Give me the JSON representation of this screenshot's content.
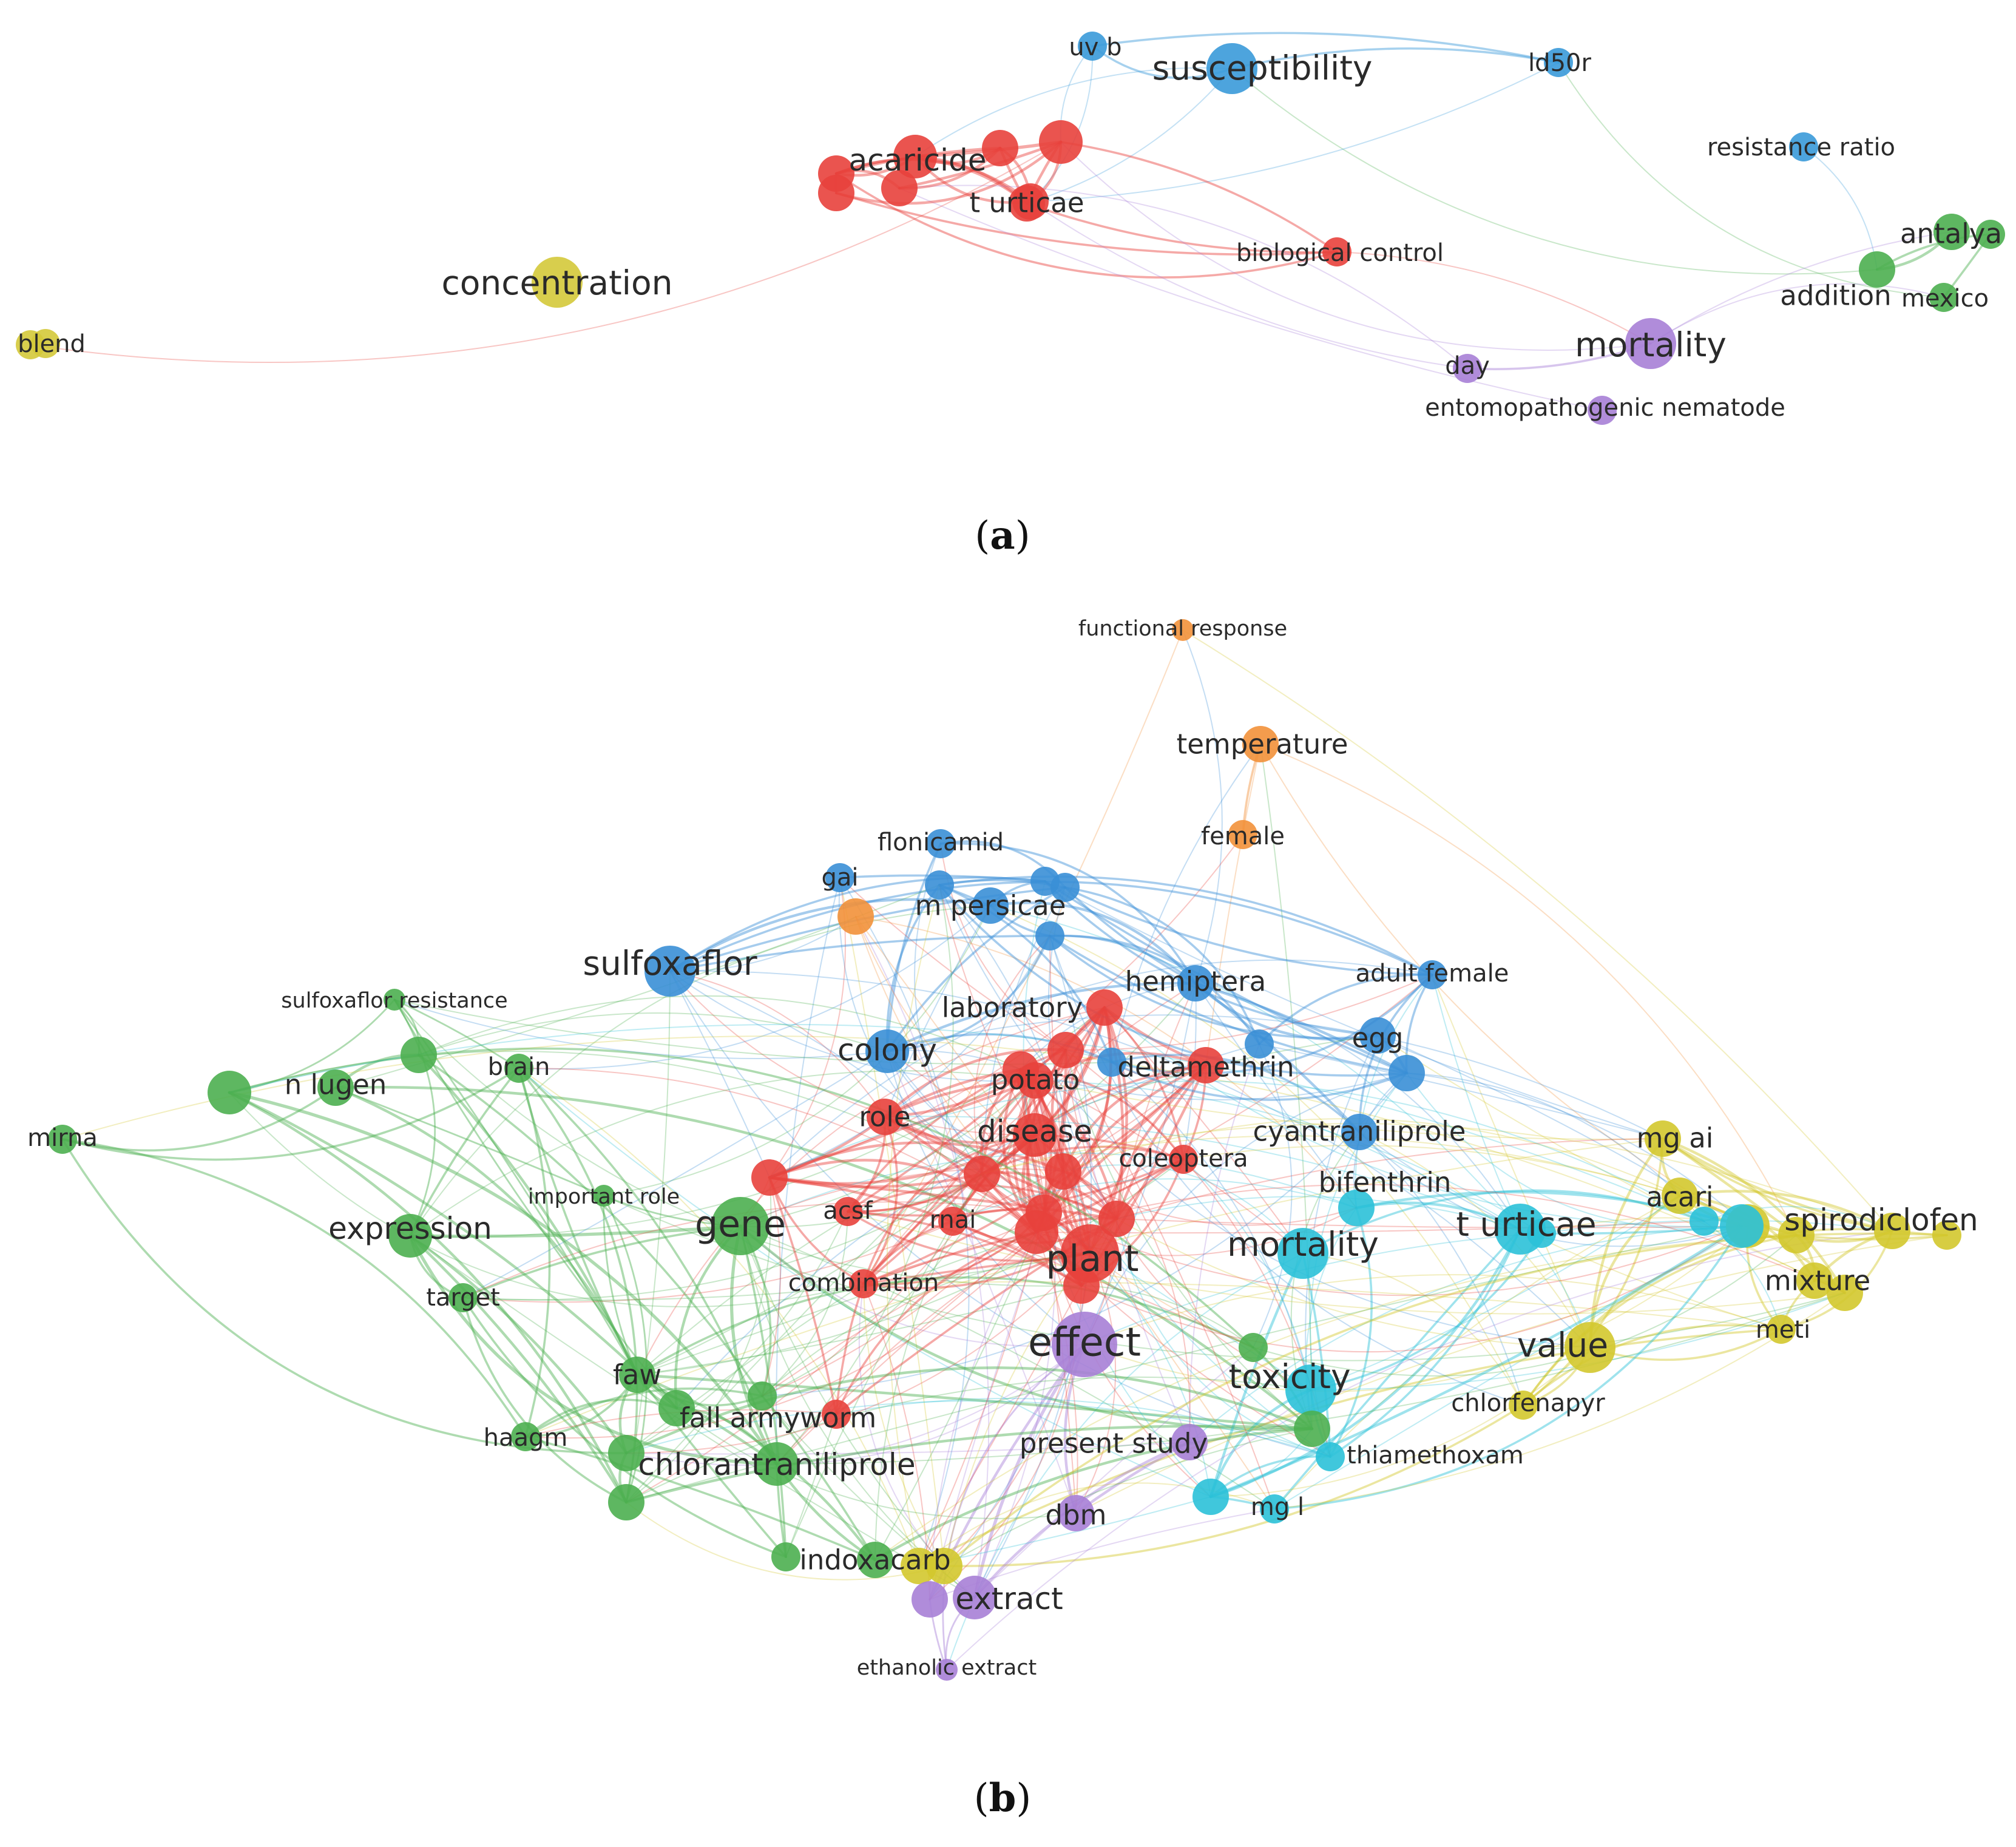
{
  "figure": {
    "panels": [
      {
        "id": "a",
        "caption_letter": "a",
        "network": {
          "clusters": {
            "red": "#e8413c",
            "yellow": "#d4c93a",
            "blue": "#3a9ad9",
            "green": "#4caf50",
            "purple": "#a77fd6"
          },
          "nodes": [
            {
              "id": "blend",
              "label": "blend",
              "cluster": "yellow",
              "weight": 2
            },
            {
              "id": "concentration",
              "label": "concentration",
              "cluster": "yellow",
              "weight": 5
            },
            {
              "id": "acaricide",
              "label": "acaricide",
              "cluster": "red",
              "weight": 4
            },
            {
              "id": "t-urticae",
              "label": "t urticae",
              "cluster": "red",
              "weight": 3
            },
            {
              "id": "uv-b",
              "label": "uv b",
              "cluster": "blue",
              "weight": 2
            },
            {
              "id": "susceptibility",
              "label": "susceptibility",
              "cluster": "blue",
              "weight": 5
            },
            {
              "id": "ld50r",
              "label": "ld50r",
              "cluster": "blue",
              "weight": 2
            },
            {
              "id": "resistance-ratio",
              "label": "resistance ratio",
              "cluster": "blue",
              "weight": 2
            },
            {
              "id": "biological-control",
              "label": "biological control",
              "cluster": "red",
              "weight": 2
            },
            {
              "id": "antalya",
              "label": "antalya",
              "cluster": "green",
              "weight": 3
            },
            {
              "id": "addition",
              "label": "addition",
              "cluster": "green",
              "weight": 3
            },
            {
              "id": "mexico",
              "label": "mexico",
              "cluster": "green",
              "weight": 2
            },
            {
              "id": "mortality",
              "label": "mortality",
              "cluster": "purple",
              "weight": 5
            },
            {
              "id": "day",
              "label": "day",
              "cluster": "purple",
              "weight": 2
            },
            {
              "id": "entomopathogenic-nematode",
              "label": "entomopathogenic nematode",
              "cluster": "purple",
              "weight": 2
            }
          ],
          "unlabeled_nodes": [
            {
              "cluster": "red",
              "weight": 3
            },
            {
              "cluster": "red",
              "weight": 3
            },
            {
              "cluster": "red",
              "weight": 3
            },
            {
              "cluster": "red",
              "weight": 3
            },
            {
              "cluster": "red",
              "weight": 4
            },
            {
              "cluster": "red",
              "weight": 3
            },
            {
              "cluster": "yellow",
              "weight": 2
            },
            {
              "cluster": "green",
              "weight": 2
            }
          ]
        }
      },
      {
        "id": "b",
        "caption_letter": "b",
        "network": {
          "clusters": {
            "red": "#e8413c",
            "green": "#4caf50",
            "blue": "#3a8fd6",
            "cyan": "#2bc1d8",
            "yellow": "#d3c82d",
            "purple": "#a77fd6",
            "orange": "#f2913a"
          },
          "nodes": [
            {
              "id": "functional-response",
              "label": "functional response",
              "cluster": "orange",
              "weight": 1
            },
            {
              "id": "temperature",
              "label": "temperature",
              "cluster": "orange",
              "weight": 3
            },
            {
              "id": "female",
              "label": "female",
              "cluster": "orange",
              "weight": 2
            },
            {
              "id": "flonicamid",
              "label": "flonicamid",
              "cluster": "blue",
              "weight": 2
            },
            {
              "id": "gai",
              "label": "gai",
              "cluster": "blue",
              "weight": 2
            },
            {
              "id": "m-persicae",
              "label": "m persicae",
              "cluster": "blue",
              "weight": 3
            },
            {
              "id": "sulfoxaflor",
              "label": "sulfoxaflor",
              "cluster": "blue",
              "weight": 5
            },
            {
              "id": "hemiptera",
              "label": "hemiptera",
              "cluster": "blue",
              "weight": 3
            },
            {
              "id": "adult-female",
              "label": "adult female",
              "cluster": "blue",
              "weight": 2
            },
            {
              "id": "laboratory",
              "label": "laboratory",
              "cluster": "red",
              "weight": 3
            },
            {
              "id": "colony",
              "label": "colony",
              "cluster": "blue",
              "weight": 4
            },
            {
              "id": "egg",
              "label": "egg",
              "cluster": "blue",
              "weight": 3
            },
            {
              "id": "sulfoxaflor-resistance",
              "label": "sulfoxaflor resistance",
              "cluster": "green",
              "weight": 1
            },
            {
              "id": "brain",
              "label": "brain",
              "cluster": "green",
              "weight": 2
            },
            {
              "id": "n-lugen",
              "label": "n lugen",
              "cluster": "green",
              "weight": 3
            },
            {
              "id": "deltamethrin",
              "label": "deltamethrin",
              "cluster": "red",
              "weight": 3
            },
            {
              "id": "potato",
              "label": "potato",
              "cluster": "red",
              "weight": 3
            },
            {
              "id": "mirna",
              "label": "mirna",
              "cluster": "green",
              "weight": 2
            },
            {
              "id": "role",
              "label": "role",
              "cluster": "red",
              "weight": 3
            },
            {
              "id": "disease",
              "label": "disease",
              "cluster": "red",
              "weight": 4
            },
            {
              "id": "cyantraniliprole",
              "label": "cyantraniliprole",
              "cluster": "blue",
              "weight": 3
            },
            {
              "id": "mg-ai",
              "label": "mg ai",
              "cluster": "yellow",
              "weight": 3
            },
            {
              "id": "coleoptera",
              "label": "coleoptera",
              "cluster": "red",
              "weight": 2
            },
            {
              "id": "bifenthrin",
              "label": "bifenthrin",
              "cluster": "cyan",
              "weight": 3
            },
            {
              "id": "important-role",
              "label": "important role",
              "cluster": "green",
              "weight": 1
            },
            {
              "id": "acari",
              "label": "acari",
              "cluster": "yellow",
              "weight": 3
            },
            {
              "id": "acsf",
              "label": "acsf",
              "cluster": "red",
              "weight": 2
            },
            {
              "id": "rnai",
              "label": "rnai",
              "cluster": "red",
              "weight": 2
            },
            {
              "id": "gene",
              "label": "gene",
              "cluster": "green",
              "weight": 6
            },
            {
              "id": "expression",
              "label": "expression",
              "cluster": "green",
              "weight": 4
            },
            {
              "id": "t-urticae",
              "label": "t urticae",
              "cluster": "cyan",
              "weight": 5
            },
            {
              "id": "spirodiclofen",
              "label": "spirodiclofen",
              "cluster": "yellow",
              "weight": 4
            },
            {
              "id": "mortality",
              "label": "mortality",
              "cluster": "cyan",
              "weight": 5
            },
            {
              "id": "plant",
              "label": "plant",
              "cluster": "red",
              "weight": 6
            },
            {
              "id": "mixture",
              "label": "mixture",
              "cluster": "yellow",
              "weight": 3
            },
            {
              "id": "combination",
              "label": "combination",
              "cluster": "red",
              "weight": 2
            },
            {
              "id": "target",
              "label": "target",
              "cluster": "green",
              "weight": 2
            },
            {
              "id": "meti",
              "label": "meti",
              "cluster": "yellow",
              "weight": 2
            },
            {
              "id": "effect",
              "label": "effect",
              "cluster": "purple",
              "weight": 7
            },
            {
              "id": "value",
              "label": "value",
              "cluster": "yellow",
              "weight": 5
            },
            {
              "id": "faw",
              "label": "faw",
              "cluster": "green",
              "weight": 3
            },
            {
              "id": "toxicity",
              "label": "toxicity",
              "cluster": "cyan",
              "weight": 5
            },
            {
              "id": "chlorfenapyr",
              "label": "chlorfenapyr",
              "cluster": "yellow",
              "weight": 2
            },
            {
              "id": "fall-armyworm",
              "label": "fall armyworm",
              "cluster": "green",
              "weight": 3
            },
            {
              "id": "haagm",
              "label": "haagm",
              "cluster": "green",
              "weight": 2
            },
            {
              "id": "present-study",
              "label": "present study",
              "cluster": "purple",
              "weight": 3
            },
            {
              "id": "thiamethoxam",
              "label": "thiamethoxam",
              "cluster": "cyan",
              "weight": 2
            },
            {
              "id": "chlorantraniliprole",
              "label": "chlorantraniliprole",
              "cluster": "green",
              "weight": 4
            },
            {
              "id": "dbm",
              "label": "dbm",
              "cluster": "purple",
              "weight": 3
            },
            {
              "id": "mg-l",
              "label": "mg l",
              "cluster": "cyan",
              "weight": 2
            },
            {
              "id": "indoxacarb",
              "label": "indoxacarb",
              "cluster": "green",
              "weight": 3
            },
            {
              "id": "extract",
              "label": "extract",
              "cluster": "purple",
              "weight": 4
            },
            {
              "id": "ethanolic-extract",
              "label": "ethanolic extract",
              "cluster": "purple",
              "weight": 1
            }
          ],
          "unlabeled_nodes": [
            {
              "cluster": "orange",
              "weight": 3
            },
            {
              "cluster": "blue",
              "weight": 2
            },
            {
              "cluster": "blue",
              "weight": 2
            },
            {
              "cluster": "blue",
              "weight": 2
            },
            {
              "cluster": "blue",
              "weight": 2
            },
            {
              "cluster": "blue",
              "weight": 2
            },
            {
              "cluster": "blue",
              "weight": 3
            },
            {
              "cluster": "blue",
              "weight": 2
            },
            {
              "cluster": "red",
              "weight": 3
            },
            {
              "cluster": "red",
              "weight": 3
            },
            {
              "cluster": "red",
              "weight": 3
            },
            {
              "cluster": "red",
              "weight": 3
            },
            {
              "cluster": "red",
              "weight": 3
            },
            {
              "cluster": "red",
              "weight": 3
            },
            {
              "cluster": "red",
              "weight": 4
            },
            {
              "cluster": "red",
              "weight": 3
            },
            {
              "cluster": "red",
              "weight": 3
            },
            {
              "cluster": "red",
              "weight": 2
            },
            {
              "cluster": "green",
              "weight": 3
            },
            {
              "cluster": "green",
              "weight": 4
            },
            {
              "cluster": "green",
              "weight": 2
            },
            {
              "cluster": "green",
              "weight": 3
            },
            {
              "cluster": "green",
              "weight": 3
            },
            {
              "cluster": "green",
              "weight": 2
            },
            {
              "cluster": "green",
              "weight": 2
            },
            {
              "cluster": "green",
              "weight": 3
            },
            {
              "cluster": "cyan",
              "weight": 3
            },
            {
              "cluster": "cyan",
              "weight": 2
            },
            {
              "cluster": "cyan",
              "weight": 2
            },
            {
              "cluster": "cyan",
              "weight": 4
            },
            {
              "cluster": "yellow",
              "weight": 3
            },
            {
              "cluster": "yellow",
              "weight": 3
            },
            {
              "cluster": "yellow",
              "weight": 2
            },
            {
              "cluster": "yellow",
              "weight": 3
            },
            {
              "cluster": "yellow",
              "weight": 3
            },
            {
              "cluster": "yellow",
              "weight": 3
            },
            {
              "cluster": "purple",
              "weight": 3
            },
            {
              "cluster": "purple",
              "weight": 3
            },
            {
              "cluster": "purple",
              "weight": 3
            }
          ]
        }
      }
    ]
  }
}
